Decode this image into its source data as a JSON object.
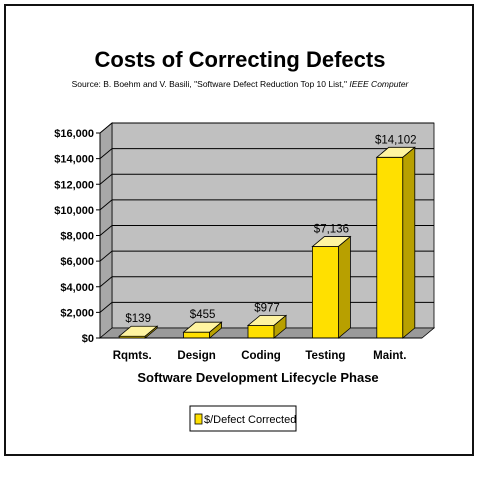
{
  "chart_data": {
    "type": "bar",
    "title": "Costs of Correcting Defects",
    "subtitle_prefix": "Source: B. Boehm and V. Basili, \"Software Defect Reduction Top 10 List,\" ",
    "subtitle_italic": "IEEE Computer",
    "xlabel": "Software Development Lifecycle Phase",
    "ylabel": "",
    "categories": [
      "Rqmts.",
      "Design",
      "Coding",
      "Testing",
      "Maint."
    ],
    "series": [
      {
        "name": "$/Defect Corrected",
        "values": [
          139,
          455,
          977,
          7136,
          14102
        ],
        "labels": [
          "$139",
          "$455",
          "$977",
          "$7,136",
          "$14,102"
        ]
      }
    ],
    "ylim": [
      0,
      16000
    ],
    "yticks": [
      0,
      2000,
      4000,
      6000,
      8000,
      10000,
      12000,
      14000,
      16000
    ],
    "ytick_labels": [
      "$0",
      "$2,000",
      "$4,000",
      "$6,000",
      "$8,000",
      "$10,000",
      "$12,000",
      "$14,000",
      "$16,000"
    ],
    "grid": true,
    "legend_position": "bottom",
    "colors": {
      "bar_front": "#ffe000",
      "bar_top": "#fff4a0",
      "bar_side": "#b8a000",
      "bar_outline": "#000000",
      "plot_back": "#c0c0c0",
      "plot_floor": "#9a9a9a",
      "plot_wall": "#a8a8a8"
    }
  }
}
